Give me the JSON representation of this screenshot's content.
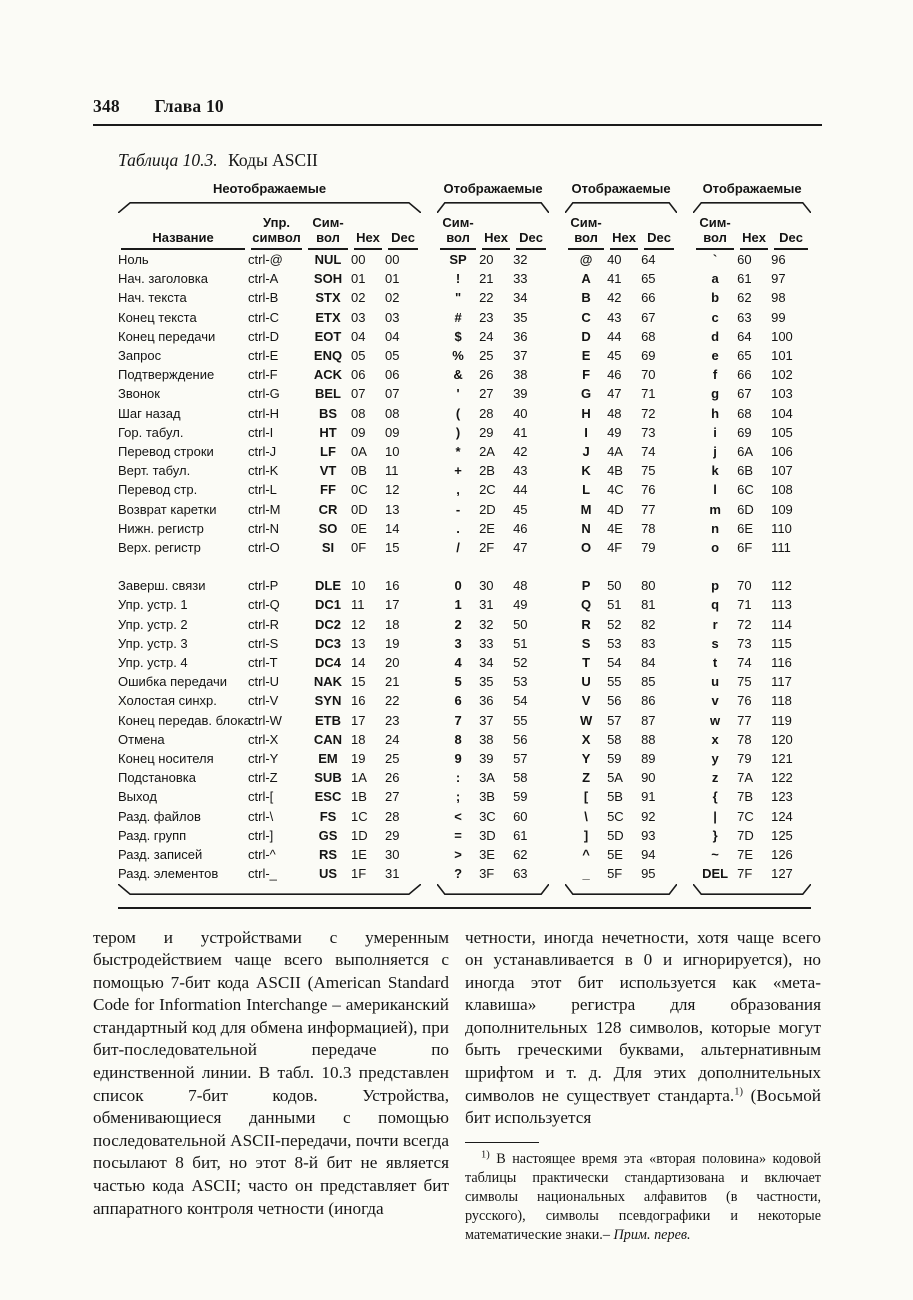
{
  "page": {
    "number": "348",
    "chapter": "Глава 10"
  },
  "table": {
    "caption_label": "Таблица 10.3.",
    "caption_title": "Коды ASCII",
    "groups": [
      "Неотображаемые",
      "Отображаемые",
      "Отображаемые",
      "Отображаемые"
    ],
    "columns": {
      "name": "Название",
      "ctrl_l1": "Упр.",
      "ctrl_l2": "символ",
      "sym_l1": "Сим-",
      "sym_l2": "вол",
      "hex": "Hex",
      "dec": "Dec"
    },
    "rows_block1": [
      [
        "Ноль",
        "ctrl-@",
        "NUL",
        "00",
        "00",
        "SP",
        "20",
        "32",
        "@",
        "40",
        "64",
        "`",
        "60",
        "96"
      ],
      [
        "Нач. заголовка",
        "ctrl-A",
        "SOH",
        "01",
        "01",
        "!",
        "21",
        "33",
        "A",
        "41",
        "65",
        "a",
        "61",
        "97"
      ],
      [
        "Нач. текста",
        "ctrl-B",
        "STX",
        "02",
        "02",
        "\"",
        "22",
        "34",
        "B",
        "42",
        "66",
        "b",
        "62",
        "98"
      ],
      [
        "Конец текста",
        "ctrl-C",
        "ETX",
        "03",
        "03",
        "#",
        "23",
        "35",
        "C",
        "43",
        "67",
        "c",
        "63",
        "99"
      ],
      [
        "Конец передачи",
        "ctrl-D",
        "EOT",
        "04",
        "04",
        "$",
        "24",
        "36",
        "D",
        "44",
        "68",
        "d",
        "64",
        "100"
      ],
      [
        "Запрос",
        "ctrl-E",
        "ENQ",
        "05",
        "05",
        "%",
        "25",
        "37",
        "E",
        "45",
        "69",
        "e",
        "65",
        "101"
      ],
      [
        "Подтверждение",
        "ctrl-F",
        "ACK",
        "06",
        "06",
        "&",
        "26",
        "38",
        "F",
        "46",
        "70",
        "f",
        "66",
        "102"
      ],
      [
        "Звонок",
        "ctrl-G",
        "BEL",
        "07",
        "07",
        "'",
        "27",
        "39",
        "G",
        "47",
        "71",
        "g",
        "67",
        "103"
      ],
      [
        "Шаг назад",
        "ctrl-H",
        "BS",
        "08",
        "08",
        "(",
        "28",
        "40",
        "H",
        "48",
        "72",
        "h",
        "68",
        "104"
      ],
      [
        "Гор. табул.",
        "ctrl-I",
        "HT",
        "09",
        "09",
        ")",
        "29",
        "41",
        "I",
        "49",
        "73",
        "i",
        "69",
        "105"
      ],
      [
        "Перевод строки",
        "ctrl-J",
        "LF",
        "0A",
        "10",
        "*",
        "2A",
        "42",
        "J",
        "4A",
        "74",
        "j",
        "6A",
        "106"
      ],
      [
        "Верт. табул.",
        "ctrl-K",
        "VT",
        "0B",
        "11",
        "+",
        "2B",
        "43",
        "K",
        "4B",
        "75",
        "k",
        "6B",
        "107"
      ],
      [
        "Перевод стр.",
        "ctrl-L",
        "FF",
        "0C",
        "12",
        ",",
        "2C",
        "44",
        "L",
        "4C",
        "76",
        "l",
        "6C",
        "108"
      ],
      [
        "Возврат каретки",
        "ctrl-M",
        "CR",
        "0D",
        "13",
        "-",
        "2D",
        "45",
        "M",
        "4D",
        "77",
        "m",
        "6D",
        "109"
      ],
      [
        "Нижн. регистр",
        "ctrl-N",
        "SO",
        "0E",
        "14",
        ".",
        "2E",
        "46",
        "N",
        "4E",
        "78",
        "n",
        "6E",
        "110"
      ],
      [
        "Верх. регистр",
        "ctrl-O",
        "SI",
        "0F",
        "15",
        "/",
        "2F",
        "47",
        "O",
        "4F",
        "79",
        "o",
        "6F",
        "111"
      ]
    ],
    "rows_block2": [
      [
        "Заверш. связи",
        "ctrl-P",
        "DLE",
        "10",
        "16",
        "0",
        "30",
        "48",
        "P",
        "50",
        "80",
        "p",
        "70",
        "112"
      ],
      [
        "Упр. устр. 1",
        "ctrl-Q",
        "DC1",
        "11",
        "17",
        "1",
        "31",
        "49",
        "Q",
        "51",
        "81",
        "q",
        "71",
        "113"
      ],
      [
        "Упр. устр. 2",
        "ctrl-R",
        "DC2",
        "12",
        "18",
        "2",
        "32",
        "50",
        "R",
        "52",
        "82",
        "r",
        "72",
        "114"
      ],
      [
        "Упр. устр. 3",
        "ctrl-S",
        "DC3",
        "13",
        "19",
        "3",
        "33",
        "51",
        "S",
        "53",
        "83",
        "s",
        "73",
        "115"
      ],
      [
        "Упр. устр. 4",
        "ctrl-T",
        "DC4",
        "14",
        "20",
        "4",
        "34",
        "52",
        "T",
        "54",
        "84",
        "t",
        "74",
        "116"
      ],
      [
        "Ошибка передачи",
        "ctrl-U",
        "NAK",
        "15",
        "21",
        "5",
        "35",
        "53",
        "U",
        "55",
        "85",
        "u",
        "75",
        "117"
      ],
      [
        "Холостая синхр.",
        "ctrl-V",
        "SYN",
        "16",
        "22",
        "6",
        "36",
        "54",
        "V",
        "56",
        "86",
        "v",
        "76",
        "118"
      ],
      [
        "Конец передав. блока",
        "ctrl-W",
        "ETB",
        "17",
        "23",
        "7",
        "37",
        "55",
        "W",
        "57",
        "87",
        "w",
        "77",
        "119"
      ],
      [
        "Отмена",
        "ctrl-X",
        "CAN",
        "18",
        "24",
        "8",
        "38",
        "56",
        "X",
        "58",
        "88",
        "x",
        "78",
        "120"
      ],
      [
        "Конец носителя",
        "ctrl-Y",
        "EM",
        "19",
        "25",
        "9",
        "39",
        "57",
        "Y",
        "59",
        "89",
        "y",
        "79",
        "121"
      ],
      [
        "Подстановка",
        "ctrl-Z",
        "SUB",
        "1A",
        "26",
        ":",
        "3A",
        "58",
        "Z",
        "5A",
        "90",
        "z",
        "7A",
        "122"
      ],
      [
        "Выход",
        "ctrl-[",
        "ESC",
        "1B",
        "27",
        ";",
        "3B",
        "59",
        "[",
        "5B",
        "91",
        "{",
        "7B",
        "123"
      ],
      [
        "Разд. файлов",
        "ctrl-\\",
        "FS",
        "1C",
        "28",
        "<",
        "3C",
        "60",
        "\\",
        "5C",
        "92",
        "|",
        "7C",
        "124"
      ],
      [
        "Разд. групп",
        "ctrl-]",
        "GS",
        "1D",
        "29",
        "=",
        "3D",
        "61",
        "]",
        "5D",
        "93",
        "}",
        "7D",
        "125"
      ],
      [
        "Разд. записей",
        "ctrl-^",
        "RS",
        "1E",
        "30",
        ">",
        "3E",
        "62",
        "^",
        "5E",
        "94",
        "~",
        "7E",
        "126"
      ],
      [
        "Разд. элементов",
        "ctrl-_",
        "US",
        "1F",
        "31",
        "?",
        "3F",
        "63",
        "_",
        "5F",
        "95",
        "DEL",
        "7F",
        "127"
      ]
    ]
  },
  "body": {
    "left_column": "тером и устройствами с умеренным быстродействием чаще всего выполняется с помощью 7-бит кода ASCII (American Standard Code for Information Interchange – американский стандартный код для обмена информацией), при бит-последовательной передаче по единственной линии. В табл. 10.3 представлен список 7-бит кодов. Устройства, обменивающиеся данными с помощью последовательной ASCII-передачи, почти всегда посылают 8 бит, но этот 8-й бит не является частью кода ASCII; часто он представляет бит аппаратного контроля четности (иногда",
    "right_column_a": "четности, иногда нечетности, хотя чаще всего он устанавливается в 0 и игнорируется), но иногда этот бит используется как «мета-клавиша» регистра для образования дополнительных 128 символов, которые могут быть греческими буквами, альтернативным шрифтом и т. д. Для этих дополнительных символов не существует стандарта.",
    "footnote_marker": "1)",
    "right_column_b": "(Восьмой бит используется",
    "footnote_text": "В настоящее время эта «вторая половина» кодовой таблицы практически стандартизована и включает символы национальных алфавитов (в частности, русского), символы псевдографики и некоторые математические знаки.– ",
    "footnote_attribution": "Прим. перев."
  }
}
